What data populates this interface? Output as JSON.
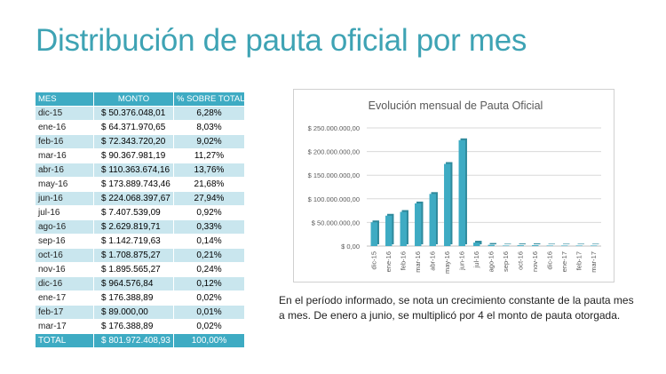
{
  "title": "Distribución de pauta oficial por mes",
  "table": {
    "headers": {
      "mes": "MES",
      "monto": "MONTO",
      "pct": "% SOBRE TOTAL"
    },
    "rows": [
      {
        "mes": "dic-15",
        "monto": "$ 50.376.048,01",
        "pct": "6,28%"
      },
      {
        "mes": "ene-16",
        "monto": "$ 64.371.970,65",
        "pct": "8,03%"
      },
      {
        "mes": "feb-16",
        "monto": "$ 72.343.720,20",
        "pct": "9,02%"
      },
      {
        "mes": "mar-16",
        "monto": "$ 90.367.981,19",
        "pct": "11,27%"
      },
      {
        "mes": "abr-16",
        "monto": "$ 110.363.674,16",
        "pct": "13,76%"
      },
      {
        "mes": "may-16",
        "monto": "$ 173.889.743,46",
        "pct": "21,68%"
      },
      {
        "mes": "jun-16",
        "monto": "$ 224.068.397,67",
        "pct": "27,94%"
      },
      {
        "mes": "jul-16",
        "monto": "$ 7.407.539,09",
        "pct": "0,92%"
      },
      {
        "mes": "ago-16",
        "monto": "$ 2.629.819,71",
        "pct": "0,33%"
      },
      {
        "mes": "sep-16",
        "monto": "$ 1.142.719,63",
        "pct": "0,14%"
      },
      {
        "mes": "oct-16",
        "monto": "$ 1.708.875,27",
        "pct": "0,21%"
      },
      {
        "mes": "nov-16",
        "monto": "$ 1.895.565,27",
        "pct": "0,24%"
      },
      {
        "mes": "dic-16",
        "monto": "$ 964.576,84",
        "pct": "0,12%"
      },
      {
        "mes": "ene-17",
        "monto": "$ 176.388,89",
        "pct": "0,02%"
      },
      {
        "mes": "feb-17",
        "monto": "$ 89.000,00",
        "pct": "0,01%"
      },
      {
        "mes": "mar-17",
        "monto": "$ 176.388,89",
        "pct": "0,02%"
      }
    ],
    "total": {
      "mes": "TOTAL",
      "monto": "$ 801.972.408,93",
      "pct": "100,00%"
    }
  },
  "chart_data": {
    "type": "bar",
    "title": "Evolución mensual de Pauta Oficial",
    "categories": [
      "dic-15",
      "ene-16",
      "feb-16",
      "mar-16",
      "abr-16",
      "may-16",
      "jun-16",
      "jul-16",
      "ago-16",
      "sep-16",
      "oct-16",
      "nov-16",
      "dic-16",
      "ene-17",
      "feb-17",
      "mar-17"
    ],
    "values": [
      50376048.01,
      64371970.65,
      72343720.2,
      90367981.19,
      110363674.16,
      173889743.46,
      224068397.67,
      7407539.09,
      2629819.71,
      1142719.63,
      1708875.27,
      1895565.27,
      964576.84,
      176388.89,
      89000.0,
      176388.89
    ],
    "ylim": [
      0,
      250000000
    ],
    "yticks": [
      {
        "value": 0,
        "label": "$ 0,00"
      },
      {
        "value": 50000000,
        "label": "$ 50.000.000,00"
      },
      {
        "value": 100000000,
        "label": "$ 100.000.000,00"
      },
      {
        "value": 150000000,
        "label": "$ 150.000.000,00"
      },
      {
        "value": 200000000,
        "label": "$ 200.000.000,00"
      },
      {
        "value": 250000000,
        "label": "$ 250.000.000,00"
      }
    ],
    "grid": true,
    "legend": "none",
    "bar_color": "#3eabc3"
  },
  "note": "En el período informado, se nota un crecimiento constante de la pauta mes a mes. De enero a junio, se multiplicó por 4 el monto de pauta otorgada."
}
